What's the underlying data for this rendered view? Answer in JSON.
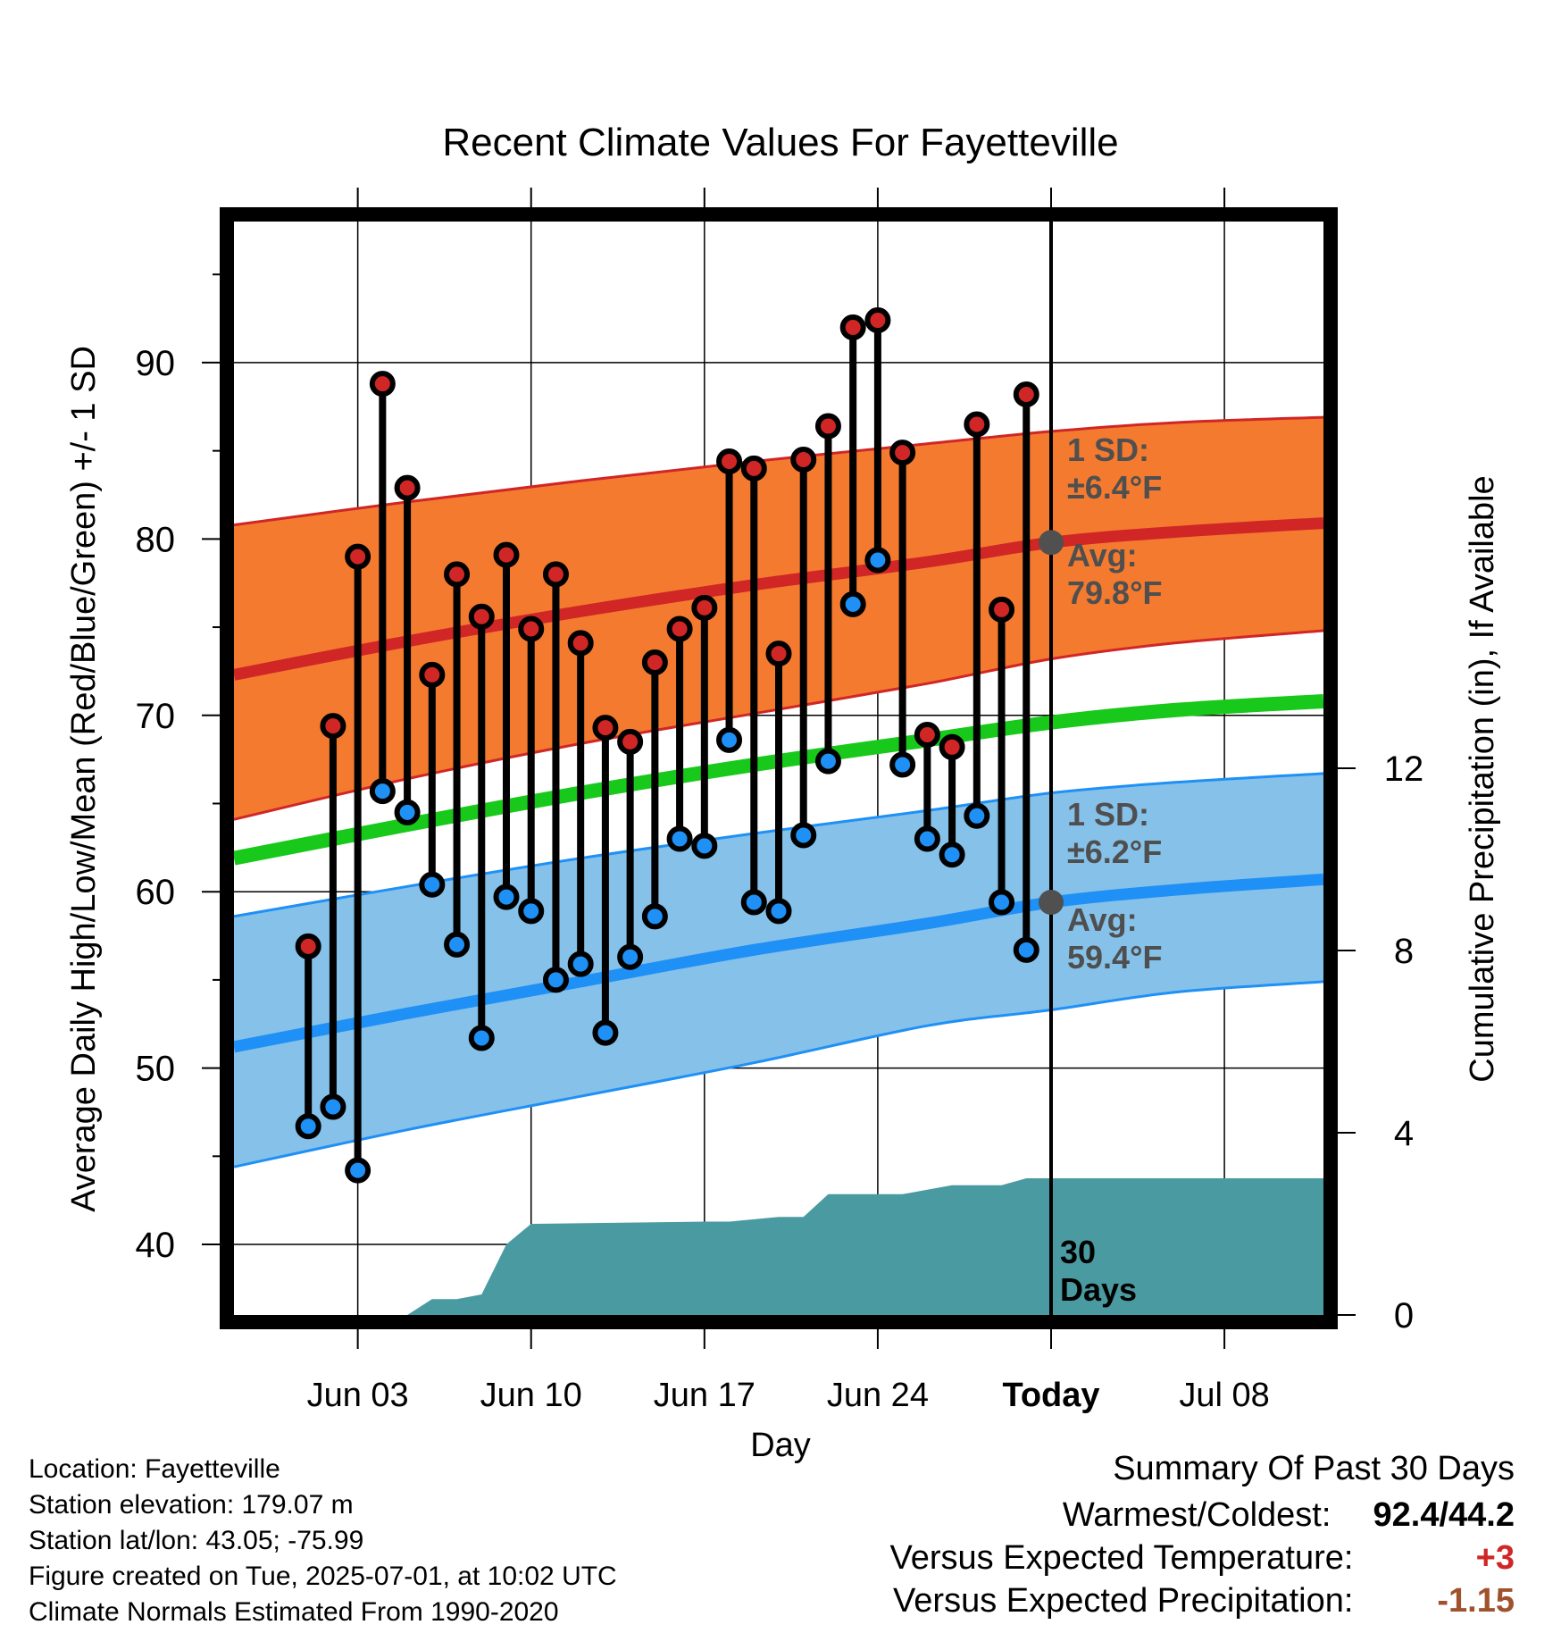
{
  "chart_data": {
    "type": "line",
    "title": "Recent Climate Values For Fayetteville",
    "xlabel": "Day",
    "ylabel": "Average Daily High/Low/Mean (Red/Blue/Green) +/- 1 SD",
    "y2label": "Cumulative Precipitation (in), If Available",
    "ylim": [
      36,
      98
    ],
    "y2lim": [
      0,
      24
    ],
    "yticks": [
      40,
      50,
      60,
      70,
      80,
      90
    ],
    "y2ticks": [
      0,
      4,
      8,
      12
    ],
    "xlim": [
      "2025-05-29",
      "2025-07-12"
    ],
    "xticks": [
      {
        "date": "2025-06-03",
        "label": "Jun 03"
      },
      {
        "date": "2025-06-10",
        "label": "Jun 10"
      },
      {
        "date": "2025-06-17",
        "label": "Jun 17"
      },
      {
        "date": "2025-06-24",
        "label": "Jun 24"
      },
      {
        "date": "2025-07-01",
        "label": "Today"
      },
      {
        "date": "2025-07-08",
        "label": "Jul 08"
      }
    ],
    "grid": true,
    "today": "2025-07-01",
    "observed": [
      {
        "date": "2025-06-01",
        "high": 56.9,
        "low": 46.7
      },
      {
        "date": "2025-06-02",
        "high": 69.4,
        "low": 47.8
      },
      {
        "date": "2025-06-03",
        "high": 79.0,
        "low": 44.2
      },
      {
        "date": "2025-06-04",
        "high": 88.8,
        "low": 65.7
      },
      {
        "date": "2025-06-05",
        "high": 82.9,
        "low": 64.5
      },
      {
        "date": "2025-06-06",
        "high": 72.3,
        "low": 60.4
      },
      {
        "date": "2025-06-07",
        "high": 78.0,
        "low": 57.0
      },
      {
        "date": "2025-06-08",
        "high": 75.6,
        "low": 51.7
      },
      {
        "date": "2025-06-09",
        "high": 79.1,
        "low": 59.7
      },
      {
        "date": "2025-06-10",
        "high": 74.9,
        "low": 58.9
      },
      {
        "date": "2025-06-11",
        "high": 78.0,
        "low": 55.0
      },
      {
        "date": "2025-06-12",
        "high": 74.1,
        "low": 55.9
      },
      {
        "date": "2025-06-13",
        "high": 69.3,
        "low": 52.0
      },
      {
        "date": "2025-06-14",
        "high": 68.5,
        "low": 56.3
      },
      {
        "date": "2025-06-15",
        "high": 73.0,
        "low": 58.6
      },
      {
        "date": "2025-06-16",
        "high": 74.9,
        "low": 63.0
      },
      {
        "date": "2025-06-17",
        "high": 76.1,
        "low": 62.6
      },
      {
        "date": "2025-06-18",
        "high": 84.4,
        "low": 68.6
      },
      {
        "date": "2025-06-19",
        "high": 84.0,
        "low": 59.4
      },
      {
        "date": "2025-06-20",
        "high": 73.5,
        "low": 58.9
      },
      {
        "date": "2025-06-21",
        "high": 84.5,
        "low": 63.2
      },
      {
        "date": "2025-06-22",
        "high": 86.4,
        "low": 67.4
      },
      {
        "date": "2025-06-23",
        "high": 92.0,
        "low": 76.3
      },
      {
        "date": "2025-06-24",
        "high": 92.4,
        "low": 78.8
      },
      {
        "date": "2025-06-25",
        "high": 84.9,
        "low": 67.2
      },
      {
        "date": "2025-06-26",
        "high": 68.9,
        "low": 63.0
      },
      {
        "date": "2025-06-27",
        "high": 68.2,
        "low": 62.1
      },
      {
        "date": "2025-06-28",
        "high": 86.5,
        "low": 64.3
      },
      {
        "date": "2025-06-29",
        "high": 76.0,
        "low": 59.4
      },
      {
        "date": "2025-06-30",
        "high": 88.2,
        "low": 56.7
      }
    ],
    "normals": [
      {
        "date": "2025-05-29",
        "high": 72.3,
        "high_sd_lo": 64.1,
        "high_sd_hi": 80.8,
        "mean": 61.9,
        "low": 51.2,
        "low_sd_lo": 44.4,
        "low_sd_hi": 58.6
      },
      {
        "date": "2025-06-05",
        "high": 74.2,
        "high_sd_lo": 66.4,
        "high_sd_hi": 82.1,
        "mean": 63.8,
        "low": 53.1,
        "low_sd_lo": 46.5,
        "low_sd_hi": 60.3
      },
      {
        "date": "2025-06-12",
        "high": 75.9,
        "high_sd_lo": 68.4,
        "high_sd_hi": 83.3,
        "mean": 65.6,
        "low": 54.9,
        "low_sd_lo": 48.4,
        "low_sd_hi": 61.9
      },
      {
        "date": "2025-06-19",
        "high": 77.4,
        "high_sd_lo": 70.1,
        "high_sd_hi": 84.4,
        "mean": 67.2,
        "low": 56.7,
        "low_sd_lo": 50.3,
        "low_sd_hi": 63.3
      },
      {
        "date": "2025-06-26",
        "high": 78.7,
        "high_sd_lo": 71.8,
        "high_sd_hi": 85.4,
        "mean": 68.6,
        "low": 58.2,
        "low_sd_lo": 52.4,
        "low_sd_hi": 64.6
      },
      {
        "date": "2025-07-01",
        "high": 79.8,
        "high_sd_lo": 73.2,
        "high_sd_hi": 86.1,
        "mean": 69.6,
        "low": 59.4,
        "low_sd_lo": 53.3,
        "low_sd_hi": 65.6
      },
      {
        "date": "2025-07-06",
        "high": 80.4,
        "high_sd_lo": 74.1,
        "high_sd_hi": 86.6,
        "mean": 70.3,
        "low": 60.1,
        "low_sd_lo": 54.3,
        "low_sd_hi": 66.2
      },
      {
        "date": "2025-07-12",
        "high": 80.9,
        "high_sd_lo": 74.8,
        "high_sd_hi": 86.9,
        "mean": 70.8,
        "low": 60.7,
        "low_sd_lo": 54.9,
        "low_sd_hi": 66.7
      }
    ],
    "precip_cumulative": [
      {
        "date": "2025-06-05",
        "value": 0
      },
      {
        "date": "2025-06-06",
        "value": 0.35
      },
      {
        "date": "2025-06-07",
        "value": 0.35
      },
      {
        "date": "2025-06-08",
        "value": 0.45
      },
      {
        "date": "2025-06-09",
        "value": 1.55
      },
      {
        "date": "2025-06-10",
        "value": 2.0
      },
      {
        "date": "2025-06-17",
        "value": 2.05
      },
      {
        "date": "2025-06-18",
        "value": 2.05
      },
      {
        "date": "2025-06-19",
        "value": 2.1
      },
      {
        "date": "2025-06-20",
        "value": 2.15
      },
      {
        "date": "2025-06-21",
        "value": 2.15
      },
      {
        "date": "2025-06-22",
        "value": 2.65
      },
      {
        "date": "2025-06-25",
        "value": 2.65
      },
      {
        "date": "2025-06-26",
        "value": 2.75
      },
      {
        "date": "2025-06-27",
        "value": 2.85
      },
      {
        "date": "2025-06-29",
        "value": 2.85
      },
      {
        "date": "2025-06-30",
        "value": 3.0
      },
      {
        "date": "2025-07-12",
        "value": 3.0
      }
    ],
    "annotations": {
      "high_sd": "1 SD:",
      "high_sd_value": "±6.4°F",
      "high_avg": "Avg:",
      "high_avg_value": "79.8°F",
      "low_sd": "1 SD:",
      "low_sd_value": "±6.2°F",
      "low_avg": "Avg:",
      "low_avg_value": "59.4°F",
      "window_number": "30",
      "window_unit": "Days"
    },
    "colors": {
      "high_band": "#f47a2f",
      "high_line": "#d02626",
      "low_band": "#85c1e9",
      "low_line": "#1f90f5",
      "mean_line": "#18c81a",
      "precip": "#4a9aa2",
      "high_dot": "#d02626",
      "low_dot": "#1f90f5",
      "marker_gray": "#505050"
    }
  },
  "info": {
    "location": "Location: Fayetteville",
    "elevation": "Station elevation: 179.07 m",
    "latlon": "Station lat/lon: 43.05; -75.99",
    "created": "Figure created on Tue, 2025-07-01, at 10:02 UTC",
    "normals": "Climate Normals Estimated From 1990-2020"
  },
  "summary": {
    "title": "Summary Of Past 30 Days",
    "warmest_label": "Warmest/Coldest:",
    "warmest_value": "92.4/44.2",
    "temp_label": "Versus Expected Temperature:",
    "temp_value": "+3",
    "temp_color": "#d02626",
    "precip_label": "Versus Expected Precipitation:",
    "precip_value": "-1.15",
    "precip_color": "#a0522d"
  }
}
